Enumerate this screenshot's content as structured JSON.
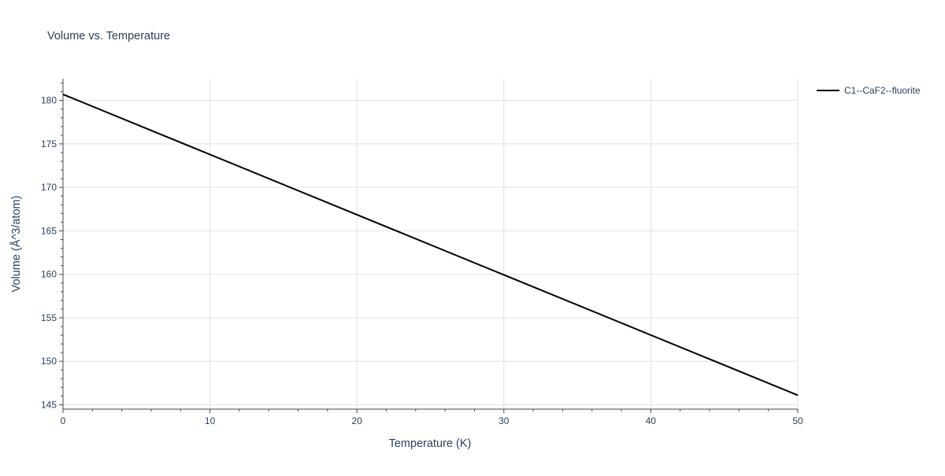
{
  "colors": {
    "series_line": "#000000",
    "grid": "#e1e1e1",
    "axis": "#444444",
    "text": "#2a3f5f"
  },
  "chart_data": {
    "type": "line",
    "title": "Volume vs. Temperature",
    "xlabel": "Temperature (K)",
    "ylabel": "Volume (Å^3/atom)",
    "xlim": [
      0,
      50
    ],
    "ylim": [
      144.5,
      182.5
    ],
    "x_ticks": [
      0,
      10,
      20,
      30,
      40,
      50
    ],
    "y_ticks": [
      145,
      150,
      155,
      160,
      165,
      170,
      175,
      180
    ],
    "grid": true,
    "legend_position": "top-right",
    "series": [
      {
        "name": "C1--CaF2--fluorite",
        "color": "#000000",
        "x": [
          0,
          50
        ],
        "y": [
          180.7,
          146.1
        ]
      }
    ]
  }
}
